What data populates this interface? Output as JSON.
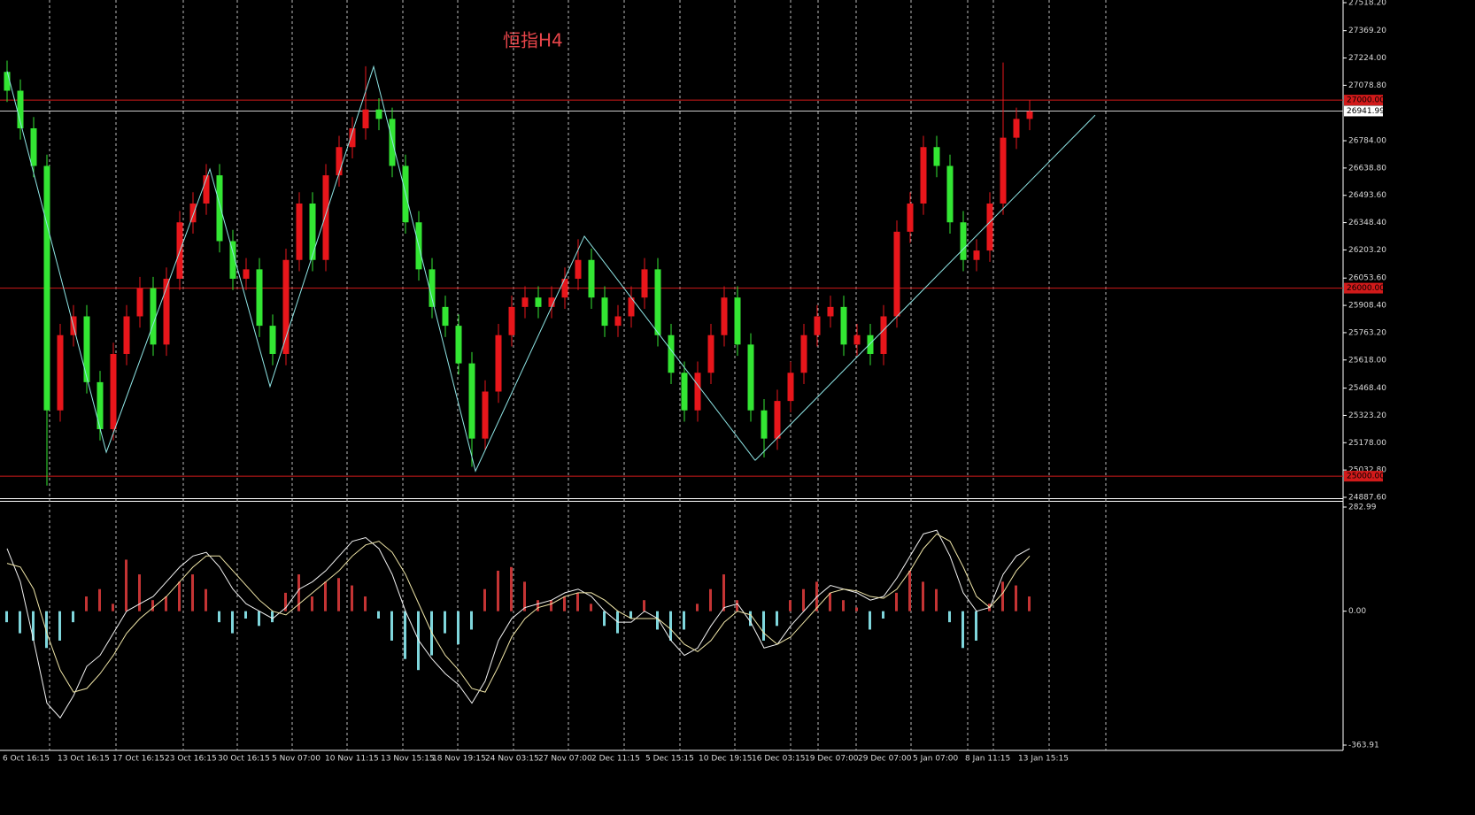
{
  "chart_data": [
    {
      "type": "candlestick",
      "title": "恒指H4",
      "title_color": "#e8454a",
      "open": [
        27150,
        27050,
        26850,
        26650,
        25350,
        25750,
        25850,
        25500,
        25250,
        25650,
        25850,
        26000,
        25700,
        26050,
        26350,
        26450,
        26600,
        26250,
        26050,
        26100,
        25800,
        25650,
        26150,
        26450,
        26150,
        26600,
        26750,
        26850,
        26950,
        26900,
        26650,
        26350,
        26100,
        25900,
        25800,
        25600,
        25200,
        25450,
        25750,
        25900,
        25950,
        25900,
        25950,
        26050,
        26150,
        25950,
        25800,
        25850,
        25950,
        26100,
        25750,
        25550,
        25350,
        25550,
        25750,
        25950,
        25700,
        25350,
        25200,
        25400,
        25550,
        25750,
        25850,
        25900,
        25700,
        25750,
        25650,
        25850,
        26300,
        26450,
        26750,
        26650,
        26350,
        26150,
        26200,
        26450,
        26800,
        26900
      ],
      "high": [
        27210,
        27110,
        26910,
        26710,
        25810,
        25910,
        25910,
        25560,
        25710,
        25910,
        26060,
        26060,
        26110,
        26410,
        26510,
        26660,
        26660,
        26310,
        26160,
        26160,
        25860,
        26210,
        26510,
        26510,
        26660,
        26810,
        26910,
        27180,
        27010,
        26960,
        26710,
        26410,
        26160,
        25960,
        25860,
        25660,
        25510,
        25810,
        25960,
        26010,
        26010,
        26010,
        26110,
        26260,
        26210,
        26010,
        25910,
        26010,
        26160,
        26160,
        25810,
        25610,
        25610,
        25810,
        26010,
        26010,
        25760,
        25410,
        25460,
        25610,
        25810,
        25910,
        25960,
        25960,
        25810,
        25810,
        25910,
        26360,
        26510,
        26810,
        26810,
        26710,
        26410,
        26260,
        26510,
        27200,
        26960,
        27000
      ],
      "low": [
        26990,
        26790,
        26590,
        24950,
        25290,
        25690,
        25440,
        25190,
        25190,
        25590,
        25790,
        25640,
        25640,
        25990,
        26290,
        26390,
        26190,
        25990,
        25990,
        25740,
        25590,
        25590,
        26090,
        26090,
        26090,
        26540,
        26690,
        26790,
        26840,
        26590,
        26290,
        26040,
        25840,
        25740,
        25540,
        25050,
        25140,
        25390,
        25690,
        25840,
        25840,
        25840,
        25890,
        25990,
        25890,
        25740,
        25740,
        25790,
        25890,
        25690,
        25490,
        25290,
        25290,
        25490,
        25690,
        25640,
        25290,
        25100,
        25140,
        25340,
        25490,
        25690,
        25790,
        25640,
        25640,
        25590,
        25590,
        25790,
        26240,
        26390,
        26590,
        26290,
        26090,
        26090,
        26140,
        26390,
        26740,
        26840
      ],
      "close": [
        27050,
        26850,
        26650,
        25350,
        25750,
        25850,
        25500,
        25250,
        25650,
        25850,
        26000,
        25700,
        26050,
        26350,
        26450,
        26600,
        26250,
        26050,
        26100,
        25800,
        25650,
        26150,
        26450,
        26150,
        26600,
        26750,
        26850,
        26950,
        26900,
        26650,
        26350,
        26100,
        25900,
        25800,
        25600,
        25200,
        25450,
        25750,
        25900,
        25950,
        25900,
        25950,
        26050,
        26150,
        25950,
        25800,
        25850,
        25950,
        26100,
        25750,
        25550,
        25350,
        25550,
        25750,
        25950,
        25700,
        25350,
        25200,
        25400,
        25550,
        25750,
        25850,
        25900,
        25700,
        25750,
        25650,
        25850,
        26300,
        26450,
        26750,
        26650,
        26350,
        26150,
        26200,
        26450,
        26800,
        26900,
        26940
      ],
      "up_color": "#e8161b",
      "down_color": "#33e633",
      "ylim": [
        24887.6,
        27518.2
      ],
      "yticks": [
        {
          "value": 27518.2,
          "label": "27518.20"
        },
        {
          "value": 27369.2,
          "label": "27369.20"
        },
        {
          "value": 27224,
          "label": "27224.00"
        },
        {
          "value": 27078.8,
          "label": "27078.80"
        },
        {
          "value": 26784,
          "label": "26784.00"
        },
        {
          "value": 26638.8,
          "label": "26638.80"
        },
        {
          "value": 26493.6,
          "label": "26493.60"
        },
        {
          "value": 26348.4,
          "label": "26348.40"
        },
        {
          "value": 26203.2,
          "label": "26203.20"
        },
        {
          "value": 26053.6,
          "label": "26053.60"
        },
        {
          "value": 25908.4,
          "label": "25908.40"
        },
        {
          "value": 25763.2,
          "label": "25763.20"
        },
        {
          "value": 25618,
          "label": "25618.00"
        },
        {
          "value": 25468.4,
          "label": "25468.40"
        },
        {
          "value": 25323.2,
          "label": "25323.20"
        },
        {
          "value": 25178,
          "label": "25178.00"
        },
        {
          "value": 25032.8,
          "label": "25032.80"
        },
        {
          "value": 24887.6,
          "label": "24887.60"
        }
      ],
      "levels": [
        {
          "value": 27000,
          "label": "27000.00"
        },
        {
          "value": 26000,
          "label": "26000.00"
        },
        {
          "value": 25000,
          "label": "25000.00"
        }
      ],
      "level_color": "#d11a1a",
      "current_price": {
        "value": 26941.99,
        "label": "26941.99"
      },
      "zigzag": {
        "color": "#8fe6e6",
        "x": [
          0,
          7.47,
          15.27,
          19.8,
          27.6,
          35.27,
          43.47,
          56.33
        ],
        "values": [
          27154,
          25127,
          26633,
          25477,
          27178,
          25027,
          26276,
          25084
        ]
      },
      "trend_line": {
        "color": "#8fe6e6",
        "x": [
          56.33,
          81.93
        ],
        "values": [
          25084,
          26920
        ]
      },
      "x_labels": [
        "6 Oct 16:15",
        "13 Oct 16:15",
        "17 Oct 16:15",
        "23 Oct 16:15",
        "30 Oct 16:15",
        "5 Nov 07:00",
        "10 Nov 11:15",
        "13 Nov 15:15",
        "18 Nov 19:15",
        "24 Nov 03:15",
        "27 Nov 07:00",
        "2 Dec 11:15",
        "5 Dec 15:15",
        "10 Dec 19:15",
        "16 Dec 03:15",
        "19 Dec 07:00",
        "29 Dec 07:00",
        "5 Jan 07:00",
        "8 Jan 11:15",
        "13 Jan 15:15"
      ]
    },
    {
      "type": "macd",
      "histogram": [
        -30,
        -60,
        -80,
        -100,
        -80,
        -30,
        40,
        60,
        20,
        140,
        100,
        30,
        40,
        80,
        100,
        60,
        -30,
        -60,
        -20,
        -40,
        -30,
        50,
        100,
        40,
        80,
        90,
        70,
        40,
        -20,
        -80,
        -130,
        -160,
        -120,
        -60,
        -90,
        -50,
        60,
        110,
        120,
        80,
        30,
        30,
        40,
        50,
        20,
        -40,
        -60,
        -20,
        30,
        -50,
        -80,
        -50,
        20,
        60,
        100,
        30,
        -40,
        -80,
        -40,
        30,
        60,
        80,
        50,
        30,
        10,
        -50,
        -20,
        50,
        110,
        80,
        60,
        -30,
        -100,
        -80,
        20,
        80,
        70,
        40
      ],
      "pos_color": "#c43434",
      "neg_color": "#7fd6dc",
      "main": {
        "color": "#f2f2f2",
        "values": [
          170,
          80,
          -80,
          -250,
          -290,
          -230,
          -150,
          -120,
          -60,
          0,
          20,
          40,
          80,
          120,
          150,
          160,
          120,
          60,
          20,
          0,
          -20,
          10,
          60,
          80,
          110,
          150,
          190,
          200,
          170,
          100,
          0,
          -80,
          -130,
          -170,
          -200,
          -250,
          -190,
          -80,
          -20,
          10,
          20,
          30,
          50,
          60,
          40,
          0,
          -30,
          -30,
          0,
          -20,
          -80,
          -120,
          -100,
          -40,
          10,
          20,
          -30,
          -100,
          -90,
          -40,
          0,
          40,
          70,
          60,
          50,
          30,
          40,
          90,
          150,
          210,
          220,
          150,
          50,
          0,
          10,
          100,
          150,
          170
        ]
      },
      "signal": {
        "color": "#f0e6a8",
        "values": [
          130,
          120,
          60,
          -60,
          -160,
          -220,
          -210,
          -170,
          -120,
          -60,
          -20,
          10,
          40,
          80,
          120,
          150,
          150,
          110,
          70,
          30,
          0,
          -10,
          20,
          50,
          80,
          110,
          150,
          180,
          190,
          160,
          100,
          20,
          -60,
          -120,
          -160,
          -210,
          -220,
          -150,
          -70,
          -20,
          10,
          20,
          40,
          50,
          50,
          30,
          0,
          -20,
          -20,
          -20,
          -50,
          -90,
          -110,
          -80,
          -30,
          0,
          -10,
          -60,
          -90,
          -70,
          -30,
          10,
          50,
          60,
          55,
          40,
          35,
          60,
          110,
          170,
          210,
          190,
          120,
          40,
          10,
          50,
          110,
          150
        ]
      },
      "ylim": [
        -363.91,
        282.99
      ],
      "yticks": [
        282.99,
        {
          "value": 0,
          "label": "0.00"
        },
        -363.91
      ]
    }
  ]
}
